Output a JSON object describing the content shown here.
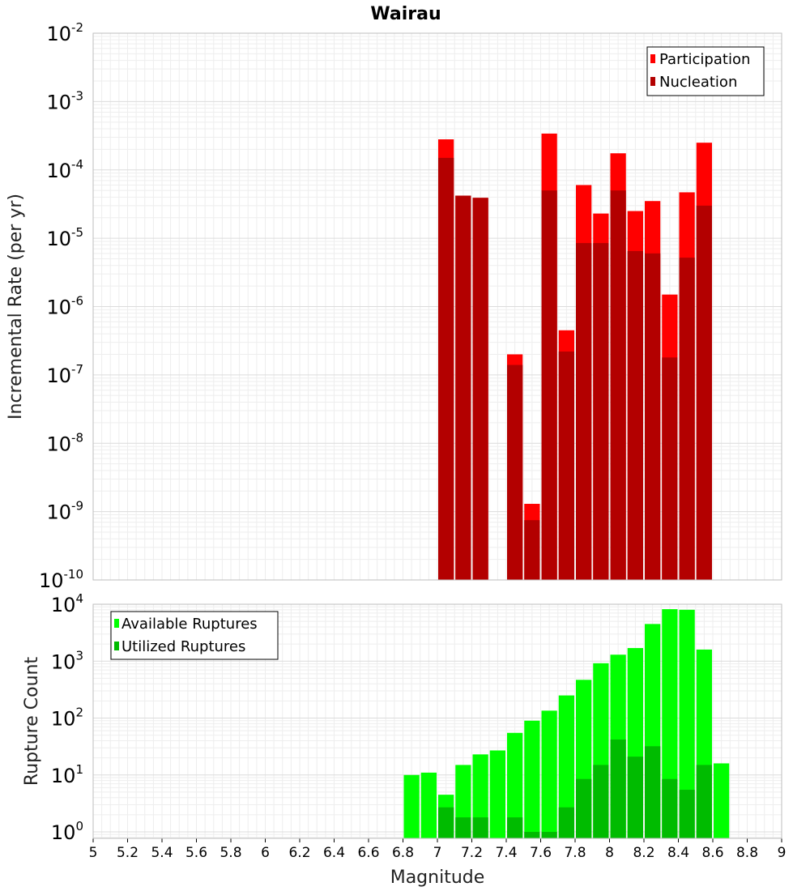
{
  "chart_data": [
    {
      "type": "bar",
      "title": "Wairau",
      "ylabel": "Incremental Rate (per yr)",
      "xlabel": "",
      "xlim": [
        5,
        9
      ],
      "ylim": [
        1e-10,
        0.01
      ],
      "yscale": "log",
      "bar_width": 0.1,
      "yticks": [
        {
          "base": "10",
          "exp": "-2",
          "value": 0.01
        },
        {
          "base": "10",
          "exp": "-3",
          "value": 0.001
        },
        {
          "base": "10",
          "exp": "-4",
          "value": 0.0001
        },
        {
          "base": "10",
          "exp": "-5",
          "value": 1e-05
        },
        {
          "base": "10",
          "exp": "-6",
          "value": 1e-06
        },
        {
          "base": "10",
          "exp": "-7",
          "value": 1e-07
        },
        {
          "base": "10",
          "exp": "-8",
          "value": 1e-08
        },
        {
          "base": "10",
          "exp": "-9",
          "value": 1e-09
        },
        {
          "base": "10",
          "exp": "-10",
          "value": 1e-10
        }
      ],
      "legend": {
        "position": "top-right",
        "overlay": true
      },
      "series": [
        {
          "name": "Participation",
          "color": "#ff0000",
          "x": [
            7.05,
            7.15,
            7.25,
            7.45,
            7.55,
            7.65,
            7.75,
            7.85,
            7.95,
            8.05,
            8.15,
            8.25,
            8.35,
            8.45,
            8.55
          ],
          "values": [
            0.00028,
            4.2e-05,
            3.9e-05,
            2e-07,
            1.3e-09,
            0.00034,
            4.5e-07,
            6e-05,
            2.3e-05,
            0.000175,
            2.5e-05,
            3.5e-05,
            1.5e-06,
            4.7e-05,
            0.00025
          ]
        },
        {
          "name": "Nucleation",
          "color": "#b30000",
          "x": [
            7.05,
            7.15,
            7.25,
            7.45,
            7.55,
            7.65,
            7.75,
            7.85,
            7.95,
            8.05,
            8.15,
            8.25,
            8.35,
            8.45,
            8.55
          ],
          "values": [
            0.00015,
            4.2e-05,
            3.9e-05,
            1.4e-07,
            7.5e-10,
            5e-05,
            2.2e-07,
            8.5e-06,
            8.5e-06,
            5e-05,
            6.5e-06,
            6e-06,
            1.8e-07,
            5.2e-06,
            3e-05
          ]
        }
      ]
    },
    {
      "type": "bar",
      "title": "",
      "ylabel": "Rupture Count",
      "xlabel": "Magnitude",
      "xlim": [
        5,
        9
      ],
      "ylim": [
        0.77,
        10000
      ],
      "yscale": "log",
      "bar_width": 0.1,
      "xticks": [
        "5",
        "5.2",
        "5.4",
        "5.6",
        "5.8",
        "6",
        "6.2",
        "6.4",
        "6.6",
        "6.8",
        "7",
        "7.2",
        "7.4",
        "7.6",
        "7.8",
        "8",
        "8.2",
        "8.4",
        "8.6",
        "8.8",
        "9"
      ],
      "yticks": [
        {
          "base": "10",
          "exp": "4",
          "value": 10000
        },
        {
          "base": "10",
          "exp": "3",
          "value": 1000
        },
        {
          "base": "10",
          "exp": "2",
          "value": 100
        },
        {
          "base": "10",
          "exp": "1",
          "value": 10
        },
        {
          "base": "10",
          "exp": "0",
          "value": 1
        }
      ],
      "legend": {
        "position": "top-left",
        "overlay": true
      },
      "series": [
        {
          "name": "Available Ruptures",
          "color": "#00ff00",
          "x": [
            6.85,
            6.95,
            7.05,
            7.15,
            7.25,
            7.35,
            7.45,
            7.55,
            7.65,
            7.75,
            7.85,
            7.95,
            8.05,
            8.15,
            8.25,
            8.35,
            8.45,
            8.55,
            8.65
          ],
          "values": [
            10,
            11,
            4.5,
            15,
            23,
            27,
            55,
            90,
            135,
            250,
            470,
            920,
            1300,
            1700,
            4500,
            8200,
            8000,
            1600,
            16
          ]
        },
        {
          "name": "Utilized Ruptures",
          "color": "#00bb00",
          "x": [
            7.05,
            7.15,
            7.25,
            7.45,
            7.55,
            7.65,
            7.75,
            7.85,
            7.95,
            8.05,
            8.15,
            8.25,
            8.35,
            8.45,
            8.55
          ],
          "values": [
            2.7,
            1.8,
            1.8,
            1.8,
            1,
            1,
            2.7,
            8.5,
            15,
            42,
            21,
            32,
            8.5,
            5.5,
            15
          ]
        }
      ]
    }
  ]
}
